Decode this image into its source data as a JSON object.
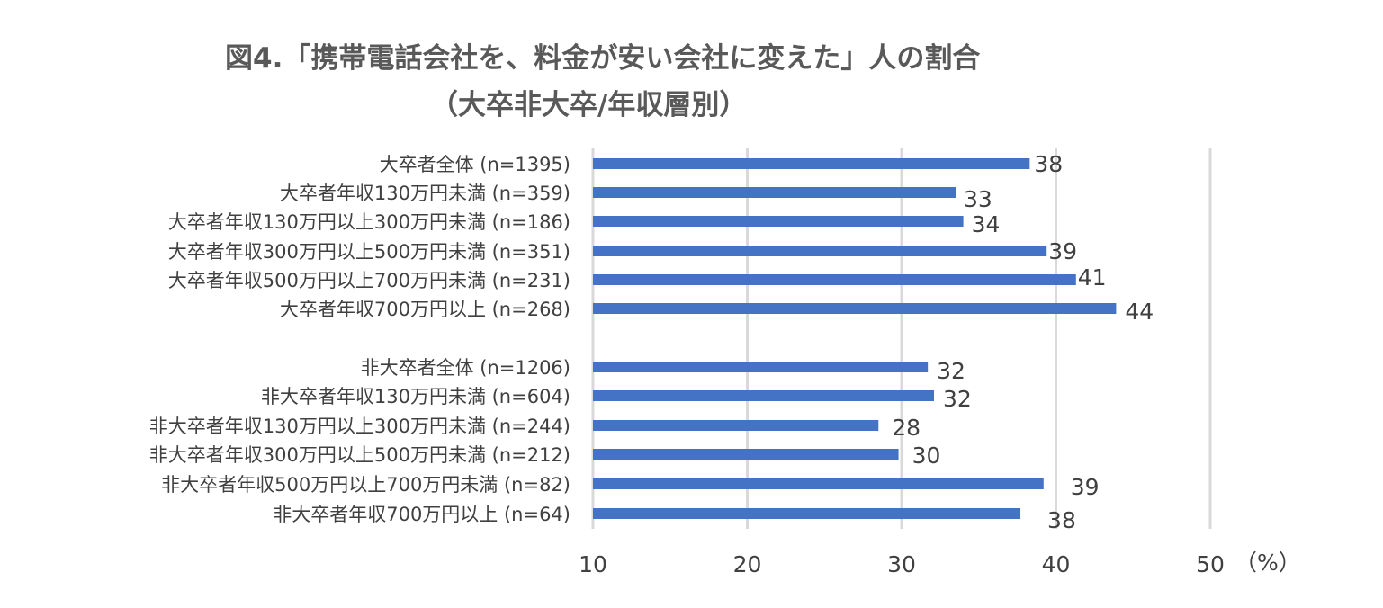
{
  "chart_data": {
    "type": "bar",
    "orientation": "horizontal",
    "title": "図4.「携帯電話会社を、料金が安い会社に変えた」人の割合",
    "subtitle": "（大卒非大卒/年収層別）",
    "unit_label": "（%）",
    "xlim": [
      10,
      50
    ],
    "x_ticks": [
      "10",
      "20",
      "30",
      "40",
      "50"
    ],
    "grid": true,
    "bar_color": "#4472c4",
    "categories": [
      "大卒者全体 (n=1395)",
      "大卒者年収130万円未満 (n=359)",
      "大卒者年収130万円以上300万円未満 (n=186)",
      "大卒者年収300万円以上500万円未満 (n=351)",
      "大卒者年収500万円以上700万円未満 (n=231)",
      "大卒者年収700万円以上 (n=268)",
      "",
      "非大卒者全体 (n=1206)",
      "非大卒者年収130万円未満 (n=604)",
      "非大卒者年収130万円以上300万円未満 (n=244)",
      "非大卒者年収300万円以上500万円未満 (n=212)",
      "非大卒者年収500万円以上700万円未満 (n=82)",
      "非大卒者年収700万円以上 (n=64)"
    ],
    "values": [
      38.3,
      33.5,
      34.0,
      39.4,
      41.3,
      43.9,
      null,
      31.7,
      32.1,
      28.5,
      29.8,
      39.2,
      37.7
    ],
    "value_labels": [
      "38",
      "33",
      "34",
      "39",
      "41",
      "44",
      "",
      "32",
      "32",
      "28",
      "30",
      "39",
      "38"
    ]
  }
}
